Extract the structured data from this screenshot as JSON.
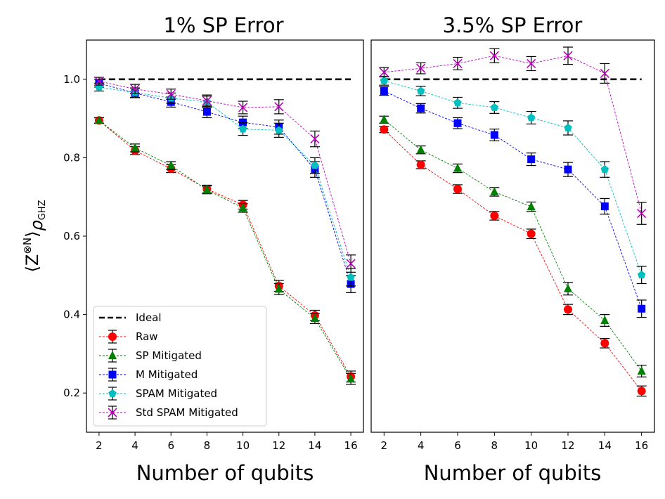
{
  "chart_data": [
    {
      "type": "line",
      "title": "1% SP Error",
      "xlabel": "Number of qubits",
      "ylabel": "⟨Z⊗N⟩ρGHZ",
      "ylabel_parts": {
        "base": "⟨Z",
        "sup": "⊗N",
        "close": "⟩",
        "rho": "ρ",
        "sub": "GHZ"
      },
      "xlim": [
        1.3,
        16.7
      ],
      "ylim": [
        0.1,
        1.1
      ],
      "x": [
        2,
        4,
        6,
        8,
        10,
        12,
        14,
        16
      ],
      "xticks": [
        2,
        4,
        6,
        8,
        10,
        12,
        14,
        16
      ],
      "yticks": [
        0.2,
        0.4,
        0.6,
        0.8,
        1.0
      ],
      "ytick_labels": [
        "0.2",
        "0.4",
        "0.6",
        "0.8",
        "1.0"
      ],
      "ideal": {
        "name": "Ideal",
        "value": 1.0,
        "color": "#000000"
      },
      "legend_position": "lower-left",
      "series": [
        {
          "name": "Raw",
          "color": "#ff0000",
          "marker": "circle",
          "values": [
            0.895,
            0.818,
            0.772,
            0.72,
            0.68,
            0.473,
            0.398,
            0.242
          ],
          "errors": [
            0.007,
            0.01,
            0.01,
            0.01,
            0.011,
            0.014,
            0.013,
            0.014
          ]
        },
        {
          "name": "SP Mitigated",
          "color": "#008000",
          "marker": "triangle",
          "values": [
            0.895,
            0.825,
            0.78,
            0.718,
            0.672,
            0.465,
            0.39,
            0.236
          ],
          "errors": [
            0.007,
            0.01,
            0.01,
            0.01,
            0.011,
            0.014,
            0.013,
            0.014
          ]
        },
        {
          "name": "M Mitigated",
          "color": "#0000ff",
          "marker": "square",
          "values": [
            0.99,
            0.965,
            0.942,
            0.917,
            0.89,
            0.878,
            0.77,
            0.478
          ],
          "errors": [
            0.01,
            0.012,
            0.013,
            0.015,
            0.016,
            0.018,
            0.02,
            0.022
          ]
        },
        {
          "name": "SPAM Mitigated",
          "color": "#00bfbf",
          "marker": "pentagon",
          "values": [
            0.98,
            0.966,
            0.952,
            0.942,
            0.873,
            0.87,
            0.78,
            0.495
          ],
          "errors": [
            0.01,
            0.012,
            0.013,
            0.015,
            0.016,
            0.018,
            0.02,
            0.022
          ]
        },
        {
          "name": "Std SPAM Mitigated",
          "color": "#bf00bf",
          "marker": "x",
          "values": [
            0.995,
            0.975,
            0.962,
            0.945,
            0.928,
            0.93,
            0.848,
            0.53
          ],
          "errors": [
            0.01,
            0.012,
            0.013,
            0.015,
            0.016,
            0.018,
            0.02,
            0.022
          ]
        }
      ]
    },
    {
      "type": "line",
      "title": "3.5% SP Error",
      "xlabel": "Number of qubits",
      "ylabel": "",
      "xlim": [
        1.3,
        16.7
      ],
      "ylim": [
        0.1,
        1.1
      ],
      "x": [
        2,
        4,
        6,
        8,
        10,
        12,
        14,
        16
      ],
      "xticks": [
        2,
        4,
        6,
        8,
        10,
        12,
        14,
        16
      ],
      "yticks": [],
      "ideal": {
        "name": "Ideal",
        "value": 1.0,
        "color": "#000000"
      },
      "series": [
        {
          "name": "Raw",
          "color": "#ff0000",
          "marker": "circle",
          "values": [
            0.872,
            0.782,
            0.72,
            0.652,
            0.606,
            0.413,
            0.327,
            0.205
          ],
          "errors": [
            0.008,
            0.01,
            0.011,
            0.011,
            0.012,
            0.013,
            0.012,
            0.013
          ]
        },
        {
          "name": "SP Mitigated",
          "color": "#008000",
          "marker": "triangle",
          "values": [
            0.897,
            0.82,
            0.773,
            0.713,
            0.675,
            0.466,
            0.385,
            0.256
          ],
          "errors": [
            0.009,
            0.01,
            0.011,
            0.011,
            0.012,
            0.016,
            0.015,
            0.015
          ]
        },
        {
          "name": "M Mitigated",
          "color": "#0000ff",
          "marker": "square",
          "values": [
            0.97,
            0.926,
            0.888,
            0.858,
            0.796,
            0.77,
            0.676,
            0.415
          ],
          "errors": [
            0.011,
            0.012,
            0.014,
            0.015,
            0.016,
            0.018,
            0.02,
            0.022
          ]
        },
        {
          "name": "SPAM Mitigated",
          "color": "#00bfbf",
          "marker": "pentagon",
          "values": [
            0.996,
            0.97,
            0.94,
            0.928,
            0.902,
            0.876,
            0.77,
            0.501
          ],
          "errors": [
            0.011,
            0.012,
            0.014,
            0.015,
            0.016,
            0.018,
            0.02,
            0.022
          ]
        },
        {
          "name": "Std SPAM Mitigated",
          "color": "#bf00bf",
          "marker": "x",
          "values": [
            1.018,
            1.028,
            1.04,
            1.06,
            1.04,
            1.06,
            1.015,
            0.658
          ],
          "errors": [
            0.012,
            0.014,
            0.016,
            0.018,
            0.018,
            0.022,
            0.025,
            0.028
          ]
        }
      ]
    }
  ]
}
